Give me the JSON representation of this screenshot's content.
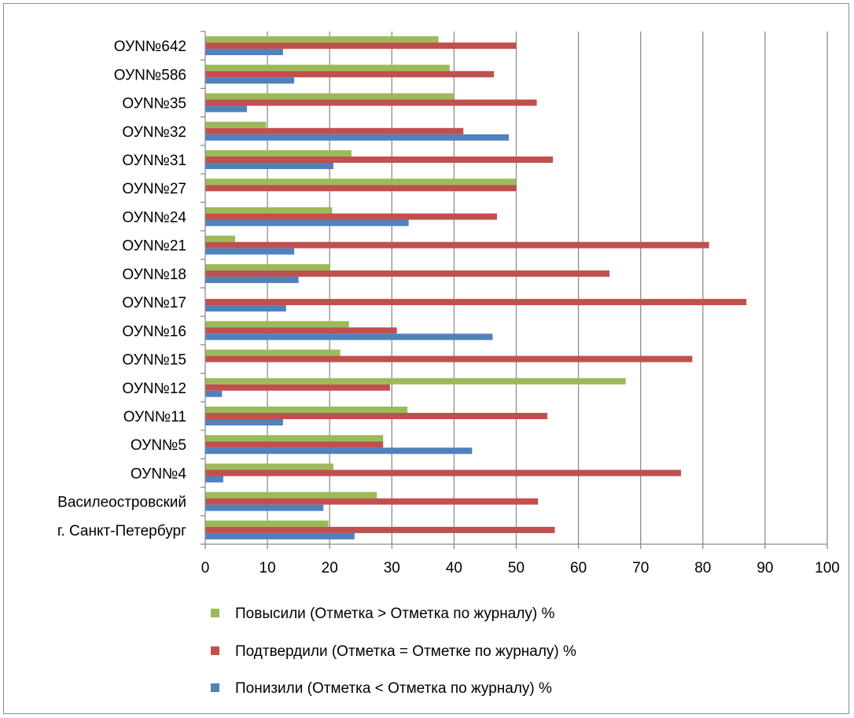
{
  "chart_data": {
    "type": "bar",
    "orientation": "horizontal",
    "categories": [
      "ОУN№642",
      "ОУN№586",
      "ОУN№35",
      "ОУN№32",
      "ОУN№31",
      "ОУN№27",
      "ОУN№24",
      "ОУN№21",
      "ОУN№18",
      "ОУN№17",
      "ОУN№16",
      "ОУN№15",
      "ОУN№12",
      "ОУN№11",
      "ОУN№5",
      "ОУN№4",
      "Василеостровский",
      "г. Санкт-Петербург"
    ],
    "series": [
      {
        "name": "Повысили (Отметка > Отметка по журналу) %",
        "color": "#9bbb59",
        "values": [
          37.5,
          39.3,
          40.0,
          9.8,
          23.5,
          50.0,
          20.4,
          4.8,
          20.0,
          0,
          23.1,
          21.7,
          67.6,
          32.5,
          28.6,
          20.6,
          27.6,
          19.8
        ]
      },
      {
        "name": "Подтвердили (Отметка = Отметке по журналу) %",
        "color": "#c0504d",
        "values": [
          50.0,
          46.4,
          53.3,
          41.5,
          55.9,
          50.0,
          46.9,
          81.0,
          65.0,
          87.0,
          30.8,
          78.3,
          29.7,
          55.0,
          28.6,
          76.5,
          53.5,
          56.2
        ]
      },
      {
        "name": "Понизили (Отметка < Отметка по журналу) %",
        "color": "#4f81bd",
        "values": [
          12.5,
          14.3,
          6.7,
          48.8,
          20.6,
          0,
          32.7,
          14.3,
          15.0,
          13.0,
          46.2,
          0,
          2.7,
          12.5,
          42.9,
          2.9,
          19.0,
          24.0
        ]
      }
    ],
    "x_ticks": [
      "0",
      "10",
      "20",
      "30",
      "40",
      "50",
      "60",
      "70",
      "80",
      "90",
      "100"
    ],
    "xlim": [
      0,
      100
    ],
    "grid": "vertical",
    "legend_position": "bottom"
  }
}
